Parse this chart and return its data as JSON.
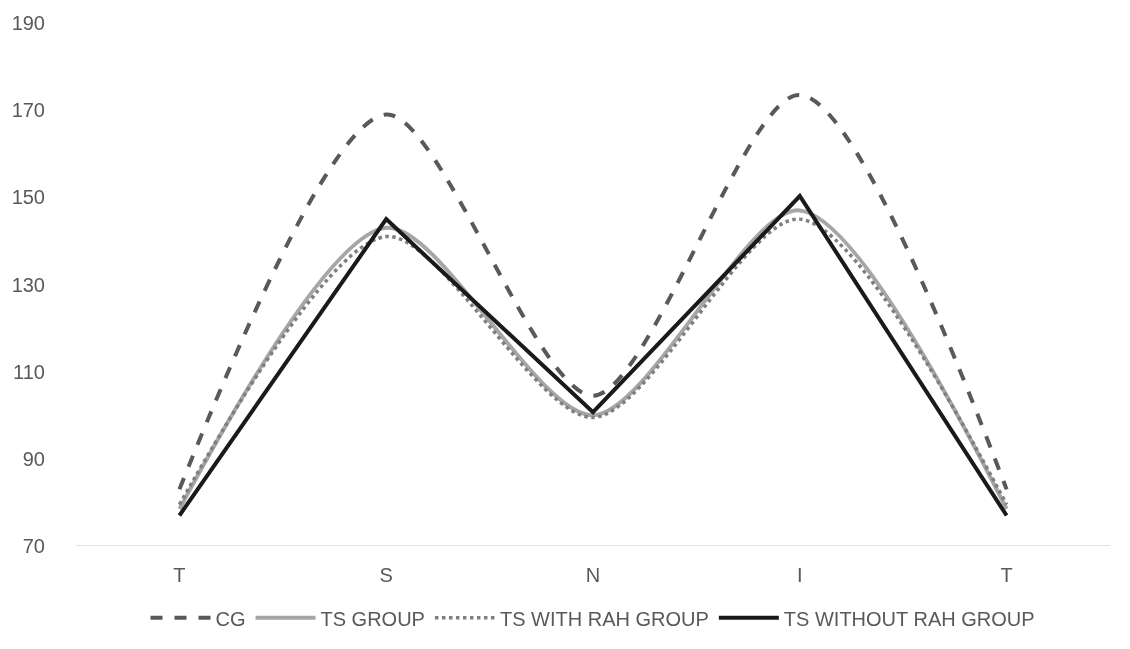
{
  "chart_data": {
    "type": "line",
    "categories": [
      "T",
      "S",
      "N",
      "I",
      "T"
    ],
    "ylim": [
      70,
      190
    ],
    "yticks": [
      70,
      90,
      110,
      130,
      150,
      170,
      190
    ],
    "grid": false,
    "legend": "bottom",
    "marker": "none",
    "series": [
      {
        "name": "CG",
        "color": "#595959",
        "line_style": "dashed",
        "values": [
          83,
          169,
          104.5,
          173.5,
          83
        ]
      },
      {
        "name": "TS GROUP",
        "color": "#a6a6a6",
        "line_style": "solid",
        "values": [
          78.5,
          143,
          100,
          147,
          78.5
        ]
      },
      {
        "name": "TS WITH RAH GROUP",
        "color": "#7f7f7f",
        "line_style": "dotted",
        "values": [
          79.5,
          141,
          99.5,
          145,
          79.5
        ]
      },
      {
        "name": "TS WITHOUT RAH GROUP",
        "color": "#1a1a1a",
        "line_style": "solid",
        "values": [
          77,
          145,
          100.7,
          150.3,
          77
        ]
      }
    ]
  }
}
